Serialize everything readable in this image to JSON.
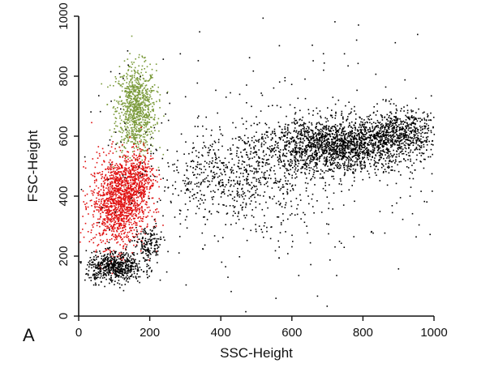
{
  "panel_label": "A",
  "chart_data": {
    "type": "scatter",
    "title": "",
    "xlabel": "SSC-Height",
    "ylabel": "FSC-Height",
    "xlim": [
      0,
      1000
    ],
    "ylim": [
      0,
      1000
    ],
    "x_ticks": [
      0,
      200,
      400,
      600,
      800,
      1000
    ],
    "y_ticks": [
      0,
      200,
      400,
      600,
      800,
      1000
    ],
    "x_tick_labels": [
      "0",
      "200",
      "400",
      "600",
      "800",
      "1000"
    ],
    "y_tick_labels": [
      "0",
      "200",
      "400",
      "600",
      "800",
      "1000"
    ],
    "grid": false,
    "legend": "none",
    "series": [
      {
        "color": "#7a9a3a",
        "clusters": [
          {
            "cx": 160,
            "cy": 690,
            "sx": 28,
            "sy": 75,
            "n": 900
          }
        ]
      },
      {
        "color": "#e01010",
        "clusters": [
          {
            "cx": 110,
            "cy": 380,
            "sx": 38,
            "sy": 75,
            "n": 1300
          },
          {
            "cx": 165,
            "cy": 470,
            "sx": 25,
            "sy": 45,
            "n": 350
          }
        ]
      },
      {
        "color": "#000000",
        "clusters": [
          {
            "cx": 100,
            "cy": 165,
            "sx": 40,
            "sy": 25,
            "n": 600
          },
          {
            "cx": 195,
            "cy": 240,
            "sx": 20,
            "sy": 30,
            "n": 150
          },
          {
            "cx": 450,
            "cy": 460,
            "sx": 110,
            "sy": 70,
            "n": 600
          },
          {
            "cx": 730,
            "cy": 570,
            "sx": 110,
            "sy": 45,
            "n": 1900
          },
          {
            "cx": 900,
            "cy": 620,
            "sx": 60,
            "sy": 35,
            "n": 500
          },
          {
            "cx": 550,
            "cy": 500,
            "sx": 280,
            "sy": 200,
            "n": 400
          }
        ]
      }
    ]
  }
}
